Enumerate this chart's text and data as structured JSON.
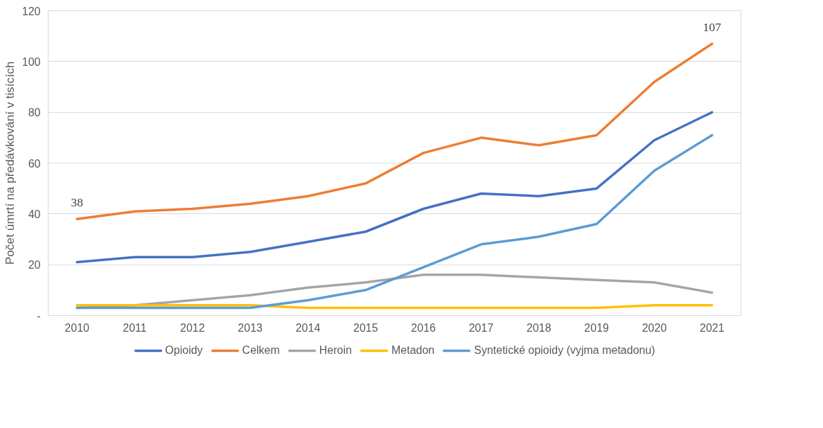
{
  "chart_data": {
    "type": "line",
    "ylabel": "Počet úmrtí na předávkování v tisících",
    "categories": [
      "2010",
      "2011",
      "2012",
      "2013",
      "2014",
      "2015",
      "2016",
      "2017",
      "2018",
      "2019",
      "2020",
      "2021"
    ],
    "ylim": [
      0,
      120
    ],
    "yticks": [
      {
        "value": 0,
        "label": "-"
      },
      20,
      40,
      60,
      80,
      100,
      120
    ],
    "grid": "y",
    "legend": "bottom",
    "series": [
      {
        "name": "Opioidy",
        "color": "#4472c4",
        "values": [
          21,
          23,
          23,
          25,
          29,
          33,
          42,
          48,
          47,
          50,
          69,
          80
        ]
      },
      {
        "name": "Celkem",
        "color": "#ed7d31",
        "values": [
          38,
          41,
          42,
          44,
          47,
          52,
          64,
          70,
          67,
          71,
          92,
          107
        ],
        "value_labels": [
          "38",
          null,
          null,
          null,
          null,
          null,
          null,
          null,
          null,
          null,
          null,
          "107"
        ]
      },
      {
        "name": "Heroin",
        "color": "#a5a5a5",
        "values": [
          3,
          4,
          6,
          8,
          11,
          13,
          16,
          16,
          15,
          14,
          13,
          9
        ]
      },
      {
        "name": "Metadon",
        "color": "#ffc000",
        "values": [
          4,
          4,
          4,
          4,
          3,
          3,
          3,
          3,
          3,
          3,
          4,
          4
        ]
      },
      {
        "name": "Syntetické opioidy (vyjma metadonu)",
        "color": "#5b9bd5",
        "values": [
          3,
          3,
          3,
          3,
          6,
          10,
          19,
          28,
          31,
          36,
          57,
          71
        ]
      }
    ]
  }
}
